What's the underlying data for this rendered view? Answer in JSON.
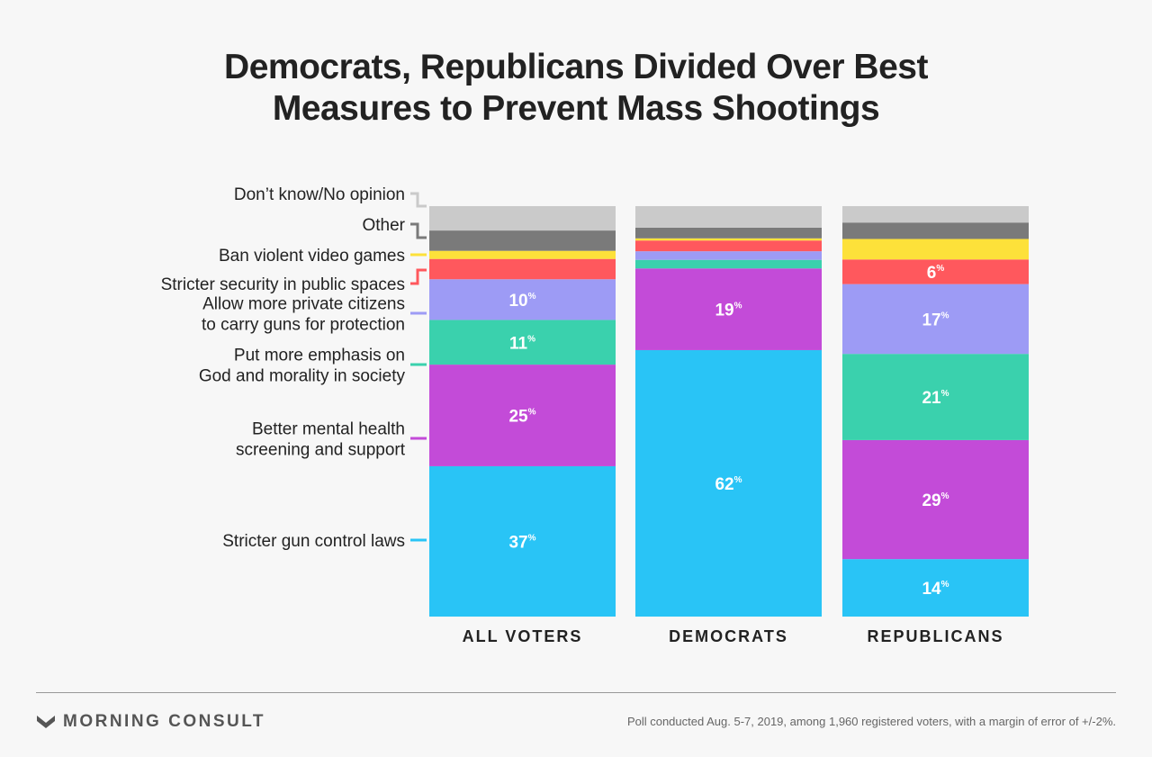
{
  "title_lines": [
    "Democrats, Republicans Divided Over Best",
    "Measures to Prevent Mass Shootings"
  ],
  "chart_data": {
    "type": "bar",
    "stacked": true,
    "percent_of_total": true,
    "categories": [
      "ALL VOTERS",
      "DEMOCRATS",
      "REPUBLICANS"
    ],
    "series": [
      {
        "name": "Stricter gun control laws",
        "color": "#29c4f6",
        "values": [
          37,
          62,
          14
        ]
      },
      {
        "name": "Better mental health screening and support",
        "color": "#c34bd8",
        "values": [
          25,
          19,
          29
        ]
      },
      {
        "name": "Put more emphasis on God and morality in society",
        "color": "#3ad1ad",
        "values": [
          11,
          2,
          21
        ]
      },
      {
        "name": "Allow more private citizens to carry guns for protection",
        "color": "#9d9bf5",
        "values": [
          10,
          2,
          17
        ]
      },
      {
        "name": "Stricter security in public spaces",
        "color": "#ff585d",
        "values": [
          5,
          2.5,
          6
        ]
      },
      {
        "name": "Ban violent video games",
        "color": "#fde13a",
        "values": [
          2,
          0.5,
          5
        ]
      },
      {
        "name": "Other",
        "color": "#7a7a7a",
        "values": [
          5,
          2.5,
          4
        ]
      },
      {
        "name": "Don’t know/No opinion",
        "color": "#cacaca",
        "values": [
          6,
          5,
          4
        ]
      }
    ],
    "value_labels": {
      "Stricter gun control laws": [
        "37",
        "62",
        "14"
      ],
      "Better mental health screening and support": [
        "25",
        "19",
        "29"
      ],
      "Put more emphasis on God and morality in society": [
        "11",
        "",
        "21"
      ],
      "Allow more private citizens to carry guns for protection": [
        "10",
        "",
        "17"
      ],
      "Stricter security in public spaces": [
        "",
        "",
        "6"
      ],
      "Ban violent video games": [
        "",
        "",
        ""
      ],
      "Other": [
        "",
        "",
        ""
      ],
      "Don’t know/No opinion": [
        "",
        "",
        ""
      ]
    },
    "value_suffix": "%",
    "legend_labels": [
      [
        "Don’t know/No opinion"
      ],
      [
        "Other"
      ],
      [
        "Ban violent video games"
      ],
      [
        "Stricter security in public spaces"
      ],
      [
        "Allow more private citizens",
        "to carry guns for protection"
      ],
      [
        "Put more emphasis on",
        "God and morality in society"
      ],
      [
        "Better mental health",
        "screening and support"
      ],
      [
        "Stricter gun control laws"
      ]
    ],
    "legend_placement": "left"
  },
  "brand": "MORNING CONSULT",
  "footnote": "Poll conducted Aug. 5-7, 2019, among 1,960 registered voters, with a margin of error of +/-2%."
}
